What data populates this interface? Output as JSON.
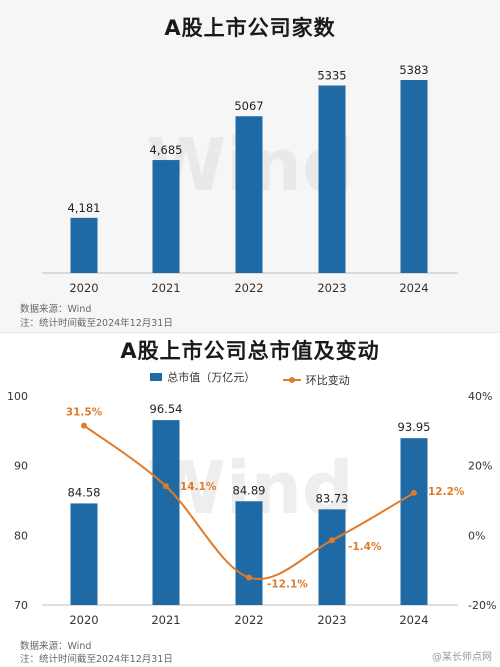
{
  "chart_data": [
    {
      "type": "bar",
      "title": "A股上市公司家数",
      "categories": [
        "2020",
        "2021",
        "2022",
        "2023",
        "2024"
      ],
      "values": [
        4181,
        4685,
        5067,
        5335,
        5383
      ],
      "value_labels": [
        "4,181",
        "4,685",
        "5067",
        "5335",
        "5383"
      ],
      "bar_color": "#1f6aa5",
      "background_watermark": "Wind",
      "notes": [
        "数据来源：Wind",
        "注：统计时间截至2024年12月31日"
      ]
    },
    {
      "type": "bar",
      "title": "A股上市公司总市值及变动",
      "categories": [
        "2020",
        "2021",
        "2022",
        "2023",
        "2024"
      ],
      "series": [
        {
          "name": "总市值（万亿元）",
          "type": "bar",
          "axis": "left",
          "color": "#1f6aa5",
          "values": [
            84.58,
            96.54,
            84.89,
            83.73,
            93.95
          ],
          "labels": [
            "84.58",
            "96.54",
            "84.89",
            "83.73",
            "93.95"
          ]
        },
        {
          "name": "环比变动",
          "type": "line",
          "axis": "right",
          "color": "#e07b2a",
          "values": [
            31.5,
            14.1,
            -12.1,
            -1.4,
            12.2
          ],
          "labels": [
            "31.5%",
            "14.1%",
            "-12.1%",
            "-1.4%",
            "12.2%"
          ]
        }
      ],
      "left_axis": {
        "min": 70,
        "max": 100,
        "ticks": [
          "70",
          "80",
          "90",
          "100"
        ],
        "tick_values": [
          70,
          80,
          90,
          100
        ]
      },
      "right_axis": {
        "min": -20,
        "max": 40,
        "ticks": [
          "-20%",
          "0%",
          "20%",
          "40%"
        ],
        "tick_values": [
          -20,
          0,
          20,
          40
        ]
      },
      "background_watermark": "Wind",
      "notes": [
        "数据来源：Wind",
        "注：统计时间截至2024年12月31日"
      ]
    }
  ],
  "watermark_text": "@某长师点网"
}
